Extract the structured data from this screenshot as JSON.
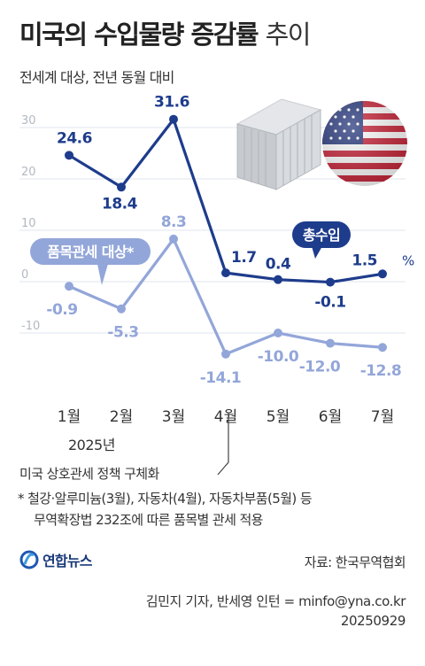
{
  "header": {
    "title_bold": "미국의 수입물량 증감률",
    "title_light": "추이",
    "subtitle": "전세계 대상, 전년 동월 대비"
  },
  "chart_data": {
    "type": "line",
    "categories": [
      "1월",
      "2월",
      "3월",
      "4월",
      "5월",
      "6월",
      "7월"
    ],
    "year_label": "2025년",
    "y_ticks": [
      "30",
      "20",
      "10",
      "0",
      "-10"
    ],
    "ylim": [
      -14.1,
      31.6
    ],
    "unit": "%",
    "series": [
      {
        "name": "총수입",
        "color": "#1e3c8c",
        "values": [
          24.6,
          18.4,
          31.6,
          1.7,
          0.4,
          -0.1,
          1.5
        ],
        "labels": [
          "24.6",
          "18.4",
          "31.6",
          "1.7",
          "0.4",
          "-0.1",
          "1.5"
        ]
      },
      {
        "name": "품목관세 대상*",
        "color": "#93a6d9",
        "values": [
          -0.9,
          -5.3,
          8.3,
          -14.1,
          -10.0,
          -12.0,
          -12.8
        ],
        "labels": [
          "-0.9",
          "-5.3",
          "8.3",
          "-14.1",
          "-10.0",
          "-12.0",
          "-12.8"
        ]
      }
    ],
    "annotation": "미국 상호관세 정책 구체화"
  },
  "colors": {
    "total_line": "#1e3c8c",
    "tariff_line": "#93a6d9",
    "grid": "#dfe4ee"
  },
  "icons": [
    "shipping-container-icon",
    "us-flag-icon",
    "yonhap-logo-icon"
  ],
  "notes": {
    "footnote_line1": "* 철강·알루미늄(3월), 자동차(4월), 자동차부품(5월) 등",
    "footnote_line2": "무역확장법 232조에 따른 품목별 관세 적용"
  },
  "footer": {
    "logo_text": "연합뉴스",
    "source": "자료: 한국무역협회",
    "credit": "김민지 기자, 반세영 인턴 = minfo@yna.co.kr",
    "date": "20250929"
  }
}
